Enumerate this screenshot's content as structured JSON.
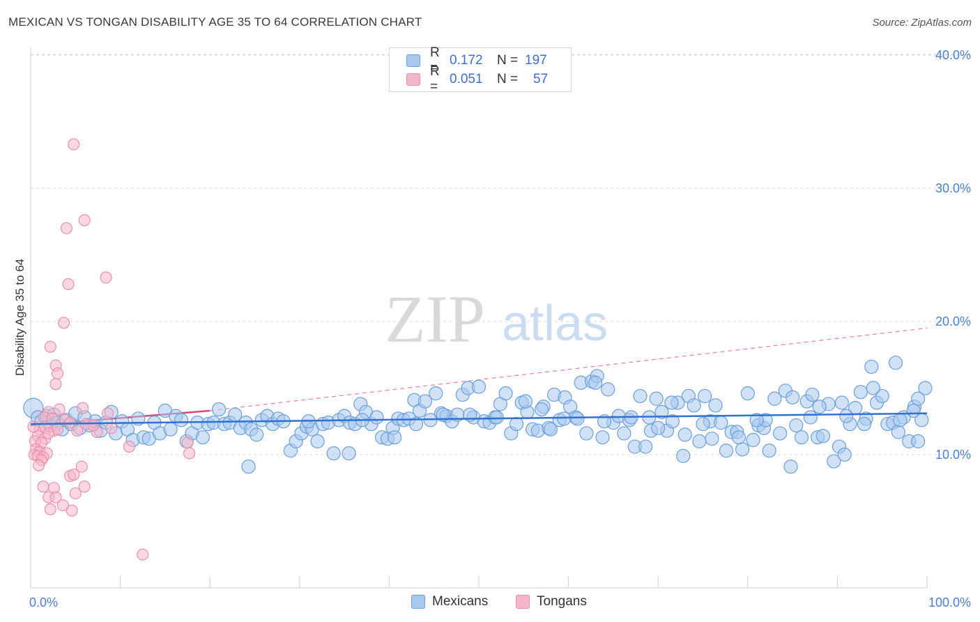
{
  "title": "MEXICAN VS TONGAN DISABILITY AGE 35 TO 64 CORRELATION CHART",
  "source": "Source: ZipAtlas.com",
  "watermark": {
    "zip": "ZIP",
    "atlas": "atlas"
  },
  "colors": {
    "mexicans_fill": "#a9c8ee",
    "mexicans_stroke": "#6a9fdc",
    "mexicans_line": "#2f72d2",
    "tongans_fill": "#f6b6c9",
    "tongans_stroke": "#e98aaa",
    "tongans_line": "#e0457a",
    "grid": "#d8d8d8",
    "tick_text": "#4a7fd4"
  },
  "legend": {
    "rows": [
      {
        "r_label": "R =",
        "r_value": "0.172",
        "n_label": "N =",
        "n_value": "197"
      },
      {
        "r_label": "R =",
        "r_value": "0.051",
        "n_label": "N =",
        "n_value": "57"
      }
    ]
  },
  "bottom_legend": {
    "mexicans": "Mexicans",
    "tongans": "Tongans"
  },
  "chart_data": {
    "type": "scatter",
    "title": "MEXICAN VS TONGAN DISABILITY AGE 35 TO 64 CORRELATION CHART",
    "xlabel": "",
    "ylabel": "Disability Age 35 to 64",
    "xlim": [
      0,
      100
    ],
    "ylim": [
      0,
      42
    ],
    "x_tick_labels": [
      "0.0%",
      "100.0%"
    ],
    "y_ticks": [
      10,
      20,
      30,
      40
    ],
    "y_tick_labels": [
      "10.0%",
      "20.0%",
      "30.0%",
      "40.0%"
    ],
    "x_minor_ticks": [
      0,
      10,
      20,
      30,
      40,
      50,
      60,
      70,
      80,
      90,
      100
    ],
    "series": [
      {
        "name": "Mexicans",
        "R": 0.172,
        "N": 197,
        "trend": {
          "x": [
            0,
            100
          ],
          "y": [
            12.3,
            13.1
          ],
          "style": "solid"
        },
        "points": [
          [
            0.3,
            13.5
          ],
          [
            0.8,
            12.8
          ],
          [
            1.2,
            12.5
          ],
          [
            1.8,
            12.9
          ],
          [
            2.2,
            12.2
          ],
          [
            2.6,
            13.0
          ],
          [
            3.0,
            12.4
          ],
          [
            3.5,
            11.9
          ],
          [
            4.0,
            12.6
          ],
          [
            4.5,
            12.3
          ],
          [
            5.0,
            13.1
          ],
          [
            5.5,
            12.0
          ],
          [
            6.0,
            12.8
          ],
          [
            6.6,
            12.2
          ],
          [
            7.2,
            12.5
          ],
          [
            7.8,
            11.8
          ],
          [
            8.4,
            12.4
          ],
          [
            9.0,
            13.2
          ],
          [
            9.5,
            11.6
          ],
          [
            10.2,
            12.5
          ],
          [
            10.8,
            11.9
          ],
          [
            11.4,
            11.1
          ],
          [
            12.0,
            12.7
          ],
          [
            12.6,
            11.3
          ],
          [
            13.2,
            11.2
          ],
          [
            13.8,
            12.4
          ],
          [
            14.4,
            11.6
          ],
          [
            15.0,
            13.3
          ],
          [
            15.6,
            11.9
          ],
          [
            16.2,
            12.9
          ],
          [
            16.8,
            12.6
          ],
          [
            17.4,
            11.0
          ],
          [
            18.0,
            11.6
          ],
          [
            18.6,
            12.4
          ],
          [
            19.2,
            11.3
          ],
          [
            19.8,
            12.3
          ],
          [
            20.4,
            12.4
          ],
          [
            21.0,
            13.4
          ],
          [
            21.6,
            12.3
          ],
          [
            22.2,
            12.4
          ],
          [
            22.8,
            13.0
          ],
          [
            23.4,
            12.0
          ],
          [
            24.0,
            12.4
          ],
          [
            24.6,
            11.9
          ],
          [
            25.2,
            11.5
          ],
          [
            25.8,
            12.6
          ],
          [
            26.4,
            12.9
          ],
          [
            27.0,
            12.3
          ],
          [
            27.6,
            12.7
          ],
          [
            28.2,
            12.5
          ],
          [
            29.0,
            10.3
          ],
          [
            29.6,
            11.0
          ],
          [
            30.2,
            11.6
          ],
          [
            30.8,
            12.1
          ],
          [
            31.4,
            11.9
          ],
          [
            32.0,
            11.0
          ],
          [
            32.6,
            12.3
          ],
          [
            33.2,
            12.4
          ],
          [
            33.8,
            10.1
          ],
          [
            34.4,
            12.6
          ],
          [
            35.0,
            12.9
          ],
          [
            35.6,
            12.4
          ],
          [
            36.2,
            12.3
          ],
          [
            36.8,
            13.8
          ],
          [
            37.4,
            13.2
          ],
          [
            38.0,
            12.3
          ],
          [
            38.6,
            12.8
          ],
          [
            39.2,
            11.3
          ],
          [
            39.8,
            11.2
          ],
          [
            40.4,
            12.0
          ],
          [
            41.0,
            12.7
          ],
          [
            41.6,
            12.6
          ],
          [
            42.2,
            12.7
          ],
          [
            42.8,
            14.1
          ],
          [
            43.4,
            13.3
          ],
          [
            44.0,
            14.0
          ],
          [
            44.6,
            12.6
          ],
          [
            45.2,
            14.6
          ],
          [
            45.8,
            13.1
          ],
          [
            46.4,
            12.9
          ],
          [
            47.0,
            12.5
          ],
          [
            47.6,
            13.0
          ],
          [
            48.2,
            14.5
          ],
          [
            48.8,
            15.0
          ],
          [
            49.4,
            12.8
          ],
          [
            50.0,
            15.1
          ],
          [
            50.6,
            12.5
          ],
          [
            51.2,
            12.4
          ],
          [
            51.8,
            12.8
          ],
          [
            52.4,
            13.8
          ],
          [
            53.0,
            14.6
          ],
          [
            53.6,
            11.6
          ],
          [
            54.2,
            12.3
          ],
          [
            54.8,
            13.9
          ],
          [
            55.4,
            13.2
          ],
          [
            56.0,
            11.9
          ],
          [
            56.6,
            11.8
          ],
          [
            57.2,
            13.6
          ],
          [
            57.8,
            12.0
          ],
          [
            58.4,
            14.5
          ],
          [
            59.0,
            12.6
          ],
          [
            59.6,
            14.3
          ],
          [
            60.2,
            13.6
          ],
          [
            60.8,
            12.8
          ],
          [
            61.4,
            15.4
          ],
          [
            62.0,
            11.6
          ],
          [
            62.6,
            15.5
          ],
          [
            63.2,
            15.9
          ],
          [
            63.8,
            11.3
          ],
          [
            64.4,
            14.9
          ],
          [
            65.0,
            12.4
          ],
          [
            65.6,
            12.9
          ],
          [
            66.2,
            11.6
          ],
          [
            66.8,
            12.6
          ],
          [
            67.4,
            10.6
          ],
          [
            68.0,
            14.4
          ],
          [
            68.6,
            10.6
          ],
          [
            69.2,
            11.8
          ],
          [
            69.8,
            14.2
          ],
          [
            70.4,
            13.2
          ],
          [
            71.0,
            11.8
          ],
          [
            71.6,
            12.5
          ],
          [
            72.2,
            13.9
          ],
          [
            72.8,
            9.9
          ],
          [
            73.4,
            14.4
          ],
          [
            74.0,
            13.7
          ],
          [
            74.6,
            11.0
          ],
          [
            75.2,
            14.4
          ],
          [
            75.8,
            12.5
          ],
          [
            76.4,
            13.7
          ],
          [
            77.0,
            12.4
          ],
          [
            77.6,
            10.3
          ],
          [
            78.2,
            11.7
          ],
          [
            78.8,
            11.7
          ],
          [
            79.4,
            10.4
          ],
          [
            80.0,
            14.6
          ],
          [
            80.6,
            11.1
          ],
          [
            81.2,
            12.2
          ],
          [
            81.8,
            12.0
          ],
          [
            82.4,
            10.3
          ],
          [
            83.0,
            14.2
          ],
          [
            83.6,
            11.6
          ],
          [
            84.2,
            14.8
          ],
          [
            84.8,
            9.1
          ],
          [
            85.4,
            12.2
          ],
          [
            86.0,
            11.3
          ],
          [
            86.6,
            14.0
          ],
          [
            87.2,
            14.5
          ],
          [
            87.8,
            11.3
          ],
          [
            88.4,
            11.4
          ],
          [
            89.0,
            13.8
          ],
          [
            89.6,
            9.5
          ],
          [
            90.2,
            10.6
          ],
          [
            90.8,
            10.0
          ],
          [
            91.4,
            12.3
          ],
          [
            92.0,
            13.5
          ],
          [
            92.6,
            14.7
          ],
          [
            93.2,
            12.7
          ],
          [
            93.8,
            16.6
          ],
          [
            94.4,
            13.9
          ],
          [
            95.0,
            14.4
          ],
          [
            95.6,
            12.3
          ],
          [
            96.2,
            12.4
          ],
          [
            96.8,
            11.7
          ],
          [
            97.4,
            12.8
          ],
          [
            98.0,
            11.0
          ],
          [
            98.6,
            13.6
          ],
          [
            99.0,
            11.0
          ],
          [
            99.4,
            12.6
          ],
          [
            99.8,
            15.0
          ],
          [
            55.2,
            14.0
          ],
          [
            58.0,
            11.9
          ],
          [
            64.0,
            12.5
          ],
          [
            70.0,
            12.0
          ],
          [
            76.0,
            11.2
          ],
          [
            82.0,
            12.6
          ],
          [
            88.0,
            13.6
          ],
          [
            90.5,
            13.9
          ],
          [
            94.0,
            15.0
          ],
          [
            96.5,
            16.9
          ],
          [
            98.5,
            13.3
          ],
          [
            24.3,
            9.1
          ],
          [
            35.5,
            10.1
          ],
          [
            40.6,
            11.3
          ],
          [
            46.0,
            13.0
          ],
          [
            52.0,
            12.8
          ],
          [
            61.0,
            12.7
          ],
          [
            67.0,
            12.8
          ],
          [
            73.0,
            11.5
          ],
          [
            79.0,
            11.3
          ],
          [
            85.0,
            14.3
          ],
          [
            91.0,
            12.9
          ],
          [
            97.0,
            12.6
          ],
          [
            31.0,
            12.5
          ],
          [
            37.0,
            12.6
          ],
          [
            43.0,
            12.3
          ],
          [
            49.0,
            13.0
          ],
          [
            57.0,
            13.4
          ],
          [
            63.0,
            15.4
          ],
          [
            69.0,
            12.8
          ],
          [
            75.0,
            12.3
          ],
          [
            81.0,
            12.6
          ],
          [
            87.0,
            12.8
          ],
          [
            93.0,
            12.3
          ],
          [
            99.0,
            14.2
          ],
          [
            59.5,
            12.7
          ],
          [
            71.5,
            13.9
          ]
        ]
      },
      {
        "name": "Tongans",
        "R": 0.051,
        "N": 57,
        "trend": {
          "x": [
            0,
            20
          ],
          "y": [
            12.2,
            13.3
          ],
          "style": "solid",
          "extension": {
            "x": [
              20,
              100
            ],
            "y": [
              13.3,
              19.5
            ],
            "style": "dashed"
          }
        },
        "points": [
          [
            4.8,
            33.3
          ],
          [
            6.0,
            27.6
          ],
          [
            4.0,
            27.0
          ],
          [
            4.2,
            22.8
          ],
          [
            8.4,
            23.3
          ],
          [
            3.7,
            19.9
          ],
          [
            2.2,
            18.1
          ],
          [
            2.8,
            16.7
          ],
          [
            3.0,
            16.1
          ],
          [
            2.8,
            15.3
          ],
          [
            5.8,
            13.5
          ],
          [
            3.2,
            13.4
          ],
          [
            2.0,
            13.2
          ],
          [
            8.6,
            13.1
          ],
          [
            1.5,
            12.8
          ],
          [
            2.4,
            12.7
          ],
          [
            3.8,
            12.6
          ],
          [
            4.4,
            12.4
          ],
          [
            6.2,
            12.3
          ],
          [
            7.4,
            11.7
          ],
          [
            1.0,
            11.9
          ],
          [
            1.6,
            12.1
          ],
          [
            2.6,
            11.8
          ],
          [
            3.0,
            11.9
          ],
          [
            0.8,
            11.4
          ],
          [
            1.6,
            11.2
          ],
          [
            2.0,
            11.6
          ],
          [
            0.5,
            11.0
          ],
          [
            1.2,
            10.9
          ],
          [
            0.6,
            10.4
          ],
          [
            1.0,
            10.2
          ],
          [
            1.8,
            10.1
          ],
          [
            0.4,
            10.0
          ],
          [
            0.8,
            9.9
          ],
          [
            1.4,
            9.8
          ],
          [
            1.2,
            9.6
          ],
          [
            0.9,
            9.2
          ],
          [
            11.0,
            10.6
          ],
          [
            17.5,
            10.9
          ],
          [
            17.7,
            10.1
          ],
          [
            5.7,
            9.1
          ],
          [
            4.4,
            8.4
          ],
          [
            4.8,
            8.5
          ],
          [
            1.4,
            7.6
          ],
          [
            2.6,
            7.5
          ],
          [
            6.0,
            7.6
          ],
          [
            5.0,
            7.1
          ],
          [
            2.0,
            6.8
          ],
          [
            2.8,
            6.8
          ],
          [
            3.6,
            6.2
          ],
          [
            2.2,
            5.9
          ],
          [
            4.6,
            5.8
          ],
          [
            12.5,
            2.5
          ],
          [
            7.0,
            12.2
          ],
          [
            5.2,
            11.8
          ],
          [
            9.0,
            12.0
          ],
          [
            0.3,
            12.1
          ]
        ]
      }
    ]
  }
}
